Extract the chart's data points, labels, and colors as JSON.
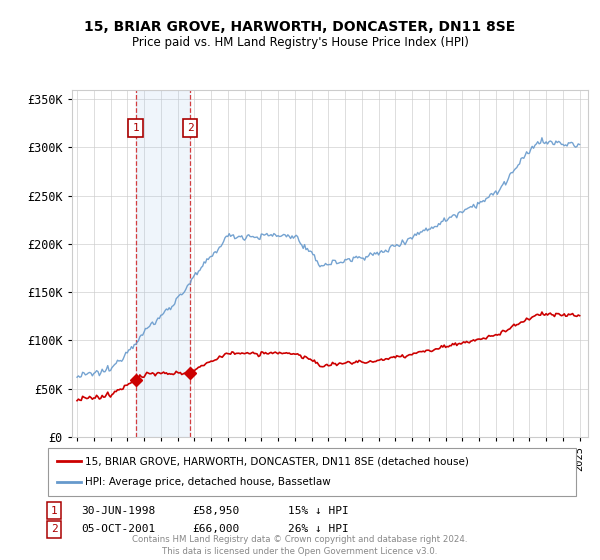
{
  "title": "15, BRIAR GROVE, HARWORTH, DONCASTER, DN11 8SE",
  "subtitle": "Price paid vs. HM Land Registry's House Price Index (HPI)",
  "ylim": [
    0,
    350000
  ],
  "yticks": [
    0,
    50000,
    100000,
    150000,
    200000,
    250000,
    300000,
    350000
  ],
  "ytick_labels": [
    "£0",
    "£50K",
    "£100K",
    "£150K",
    "£200K",
    "£250K",
    "£300K",
    "£350K"
  ],
  "sale1_date_num": 1998.5,
  "sale1_price": 58950,
  "sale1_label": "1",
  "sale1_text": "30-JUN-1998",
  "sale1_amount": "£58,950",
  "sale1_hpi": "15% ↓ HPI",
  "sale2_date_num": 2001.75,
  "sale2_price": 66000,
  "sale2_label": "2",
  "sale2_text": "05-OCT-2001",
  "sale2_amount": "£66,000",
  "sale2_hpi": "26% ↓ HPI",
  "legend_property": "15, BRIAR GROVE, HARWORTH, DONCASTER, DN11 8SE (detached house)",
  "legend_hpi": "HPI: Average price, detached house, Bassetlaw",
  "property_color": "#cc0000",
  "hpi_color": "#6699cc",
  "shading_color": "#ddeeff",
  "footnote": "Contains HM Land Registry data © Crown copyright and database right 2024.\nThis data is licensed under the Open Government Licence v3.0.",
  "background_color": "#ffffff",
  "grid_color": "#cccccc"
}
